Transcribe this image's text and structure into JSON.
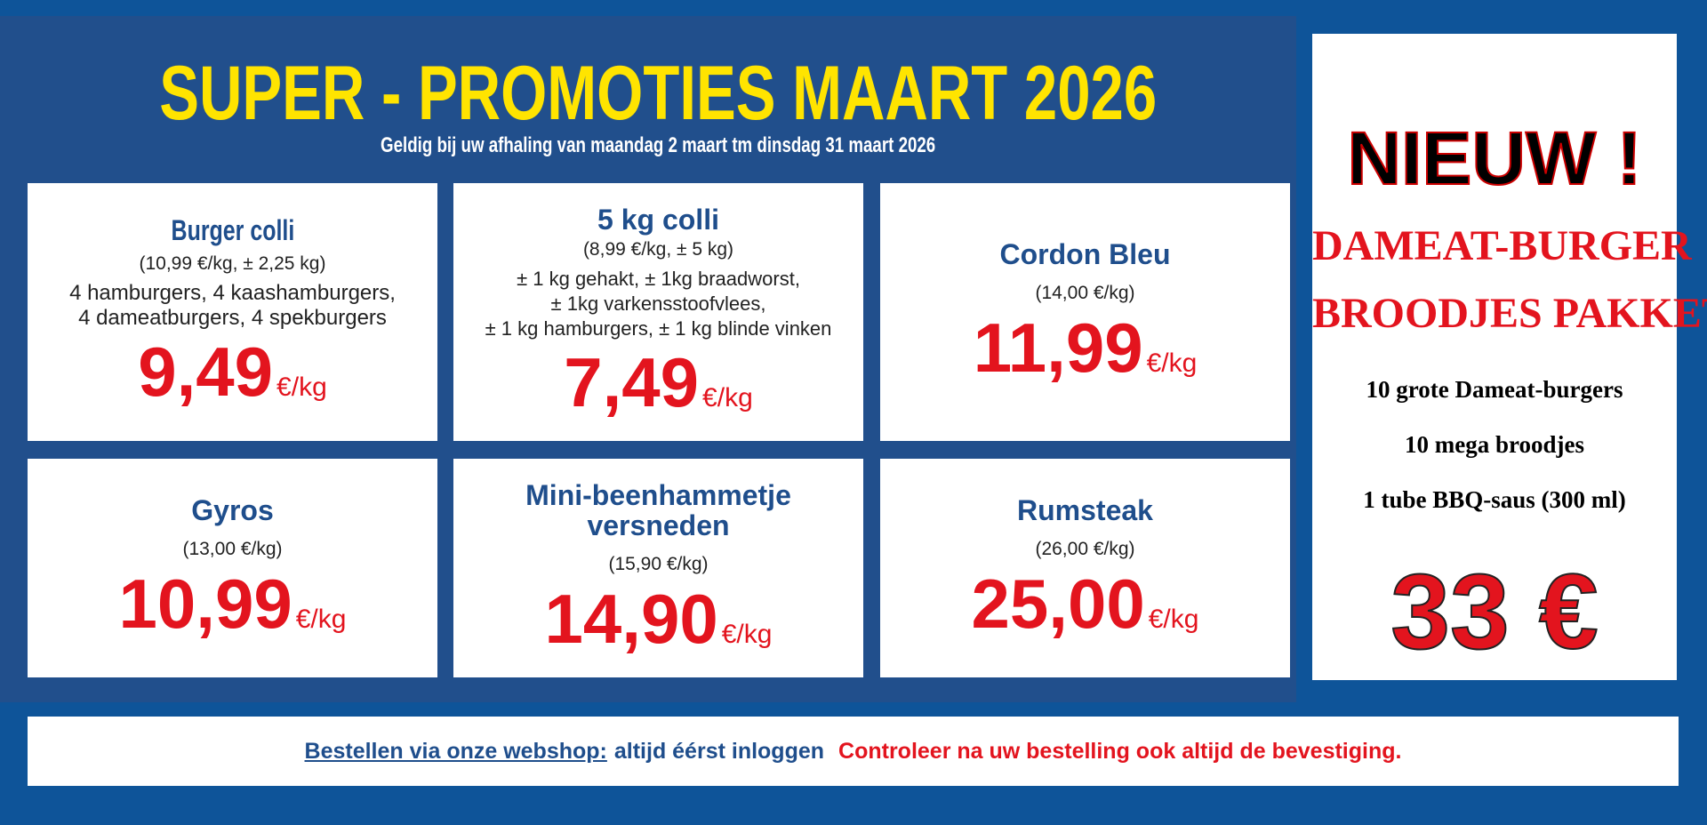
{
  "header": {
    "title": "SUPER - PROMOTIES MAART 2026",
    "subtitle": "Geldig bij uw afhaling van maandag 2 maart tm dinsdag 31 maart 2026"
  },
  "cards": [
    {
      "title": "Burger colli",
      "subtitle": "(10,99 €/kg, ± 2,25 kg)",
      "description": [
        "4 hamburgers, 4 kaashamburgers,",
        "4 dameatburgers, 4 spekburgers"
      ],
      "price": "9,49",
      "unit": "€/kg"
    },
    {
      "title": "5 kg colli",
      "subtitle": "(8,99 €/kg, ± 5 kg)",
      "description": [
        "± 1 kg gehakt, ± 1kg braadworst,",
        "± 1kg varkensstoofvlees,",
        "± 1 kg hamburgers, ± 1 kg blinde vinken"
      ],
      "price": "7,49",
      "unit": "€/kg"
    },
    {
      "title": "Cordon Bleu",
      "subtitle": "(14,00 €/kg)",
      "price": "11,99",
      "unit": "€/kg"
    },
    {
      "title": "Gyros",
      "subtitle": "(13,00 €/kg)",
      "price": "10,99",
      "unit": "€/kg"
    },
    {
      "title": "Mini-beenhammetje versneden",
      "title_lines": [
        "Mini-beenhammetje",
        "versneden"
      ],
      "subtitle": "(15,90 €/kg)",
      "price": "14,90",
      "unit": "€/kg"
    },
    {
      "title": "Rumsteak",
      "subtitle": "(26,00 €/kg)",
      "price": "25,00",
      "unit": "€/kg"
    }
  ],
  "promo": {
    "badge": "NIEUW !",
    "heading1": "DAMEAT-BURGER",
    "heading2": "BROODJES PAKKET",
    "items": [
      "10 grote Dameat-burgers",
      "10 mega broodjes",
      "1 tube BBQ-saus (300 ml)"
    ],
    "price": "33 €"
  },
  "footer": {
    "link": "Bestellen via onze webshop:",
    "note": "altijd éérst inloggen",
    "warning": "Controleer na uw bestelling ook altijd de bevestiging."
  },
  "colors": {
    "background": "#0e5499",
    "panel": "#214f8c",
    "title": "#ffe400",
    "price": "#e3141e",
    "heading": "#1f4e8c"
  }
}
